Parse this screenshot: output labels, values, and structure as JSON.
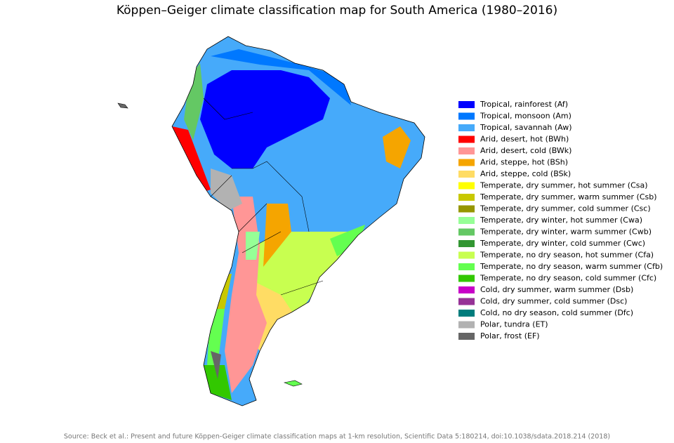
{
  "title": "Köppen–Geiger climate classification map for South America (1980–2016)",
  "legend": [
    {
      "label": "Tropical, rainforest (Af)",
      "color": "#0000ff"
    },
    {
      "label": "Tropical, monsoon (Am)",
      "color": "#0078ff"
    },
    {
      "label": "Tropical, savannah (Aw)",
      "color": "#46aafa"
    },
    {
      "label": "Arid, desert, hot (BWh)",
      "color": "#ff0000"
    },
    {
      "label": "Arid, desert, cold (BWk)",
      "color": "#ff9696"
    },
    {
      "label": "Arid, steppe, hot (BSh)",
      "color": "#f5a500"
    },
    {
      "label": "Arid, steppe, cold (BSk)",
      "color": "#ffdc64"
    },
    {
      "label": "Temperate, dry summer, hot summer (Csa)",
      "color": "#ffff00"
    },
    {
      "label": "Temperate, dry summer, warm summer (Csb)",
      "color": "#c8c800"
    },
    {
      "label": "Temperate, dry summer, cold summer (Csc)",
      "color": "#969600"
    },
    {
      "label": "Temperate, dry winter, hot summer (Cwa)",
      "color": "#96ff96"
    },
    {
      "label": "Temperate, dry winter, warm summer (Cwb)",
      "color": "#64c864"
    },
    {
      "label": "Temperate, dry winter, cold summer (Cwc)",
      "color": "#329632"
    },
    {
      "label": "Temperate, no dry season, hot summer (Cfa)",
      "color": "#c8ff50"
    },
    {
      "label": "Temperate, no dry season, warm summer (Cfb)",
      "color": "#64ff50"
    },
    {
      "label": "Temperate, no dry season, cold summer (Cfc)",
      "color": "#32c800"
    },
    {
      "label": "Cold, dry summer, warm summer (Dsb)",
      "color": "#c800c8"
    },
    {
      "label": "Cold, dry summer, cold summer (Dsc)",
      "color": "#963296"
    },
    {
      "label": "Cold, no dry season, cold summer (Dfc)",
      "color": "#007d7d"
    },
    {
      "label": "Polar, tundra (ET)",
      "color": "#b2b2b2"
    },
    {
      "label": "Polar, frost (EF)",
      "color": "#666666"
    }
  ],
  "source": "Source: Beck et al.: Present and future Köppen-Geiger climate classification maps at 1-km resolution, Scientific Data 5:180214, doi:10.1038/sdata.2018.214 (2018)"
}
